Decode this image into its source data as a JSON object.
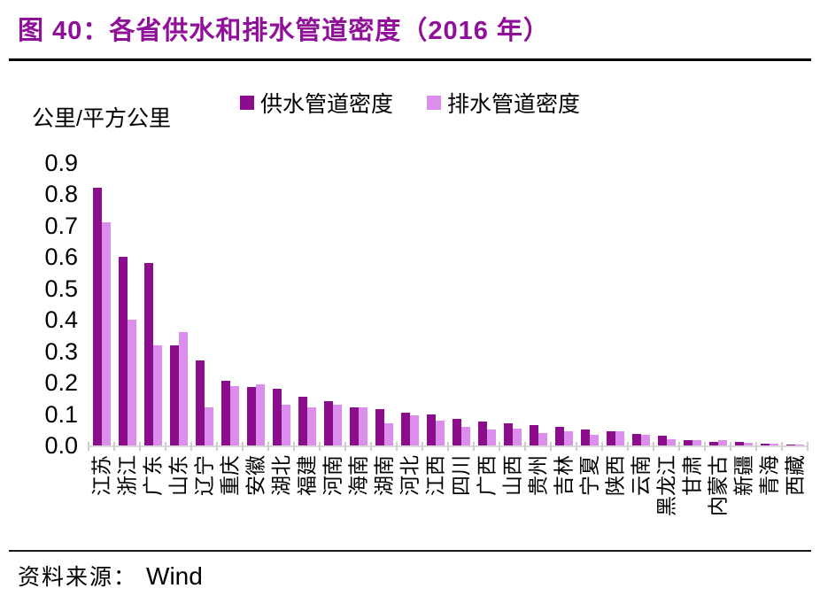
{
  "figure": {
    "title": "图 40：各省供水和排水管道密度（2016 年）",
    "title_color": "#90109A",
    "source_label": "资料来源：",
    "source_value": "Wind"
  },
  "chart_data": {
    "type": "bar",
    "title": "各省供水和排水管道密度（2016 年）",
    "unit_label": "公里/平方公里",
    "xlabel": "",
    "ylabel": "公里/平方公里",
    "ylim": [
      0,
      0.9
    ],
    "grid": false,
    "legend_position": "top-center",
    "axis_line_color": "#D9D9D9",
    "y_ticks": [
      "0.9",
      "0.8",
      "0.7",
      "0.6",
      "0.5",
      "0.4",
      "0.3",
      "0.2",
      "0.1",
      "0.0"
    ],
    "legend": [
      {
        "name": "供水管道密度",
        "color": "#8B0D8B"
      },
      {
        "name": "排水管道密度",
        "color": "#DB8EEC"
      }
    ],
    "categories": [
      "江苏",
      "浙江",
      "广东",
      "山东",
      "辽宁",
      "重庆",
      "安徽",
      "湖北",
      "福建",
      "河南",
      "海南",
      "湖南",
      "河北",
      "江西",
      "四川",
      "广西",
      "山西",
      "贵州",
      "吉林",
      "宁夏",
      "陕西",
      "云南",
      "黑龙江",
      "甘肃",
      "内蒙古",
      "新疆",
      "青海",
      "西藏"
    ],
    "series": [
      {
        "name": "供水管道密度",
        "values": [
          0.82,
          0.6,
          0.58,
          0.32,
          0.27,
          0.205,
          0.185,
          0.18,
          0.155,
          0.14,
          0.12,
          0.115,
          0.105,
          0.1,
          0.085,
          0.075,
          0.07,
          0.065,
          0.06,
          0.05,
          0.046,
          0.038,
          0.032,
          0.017,
          0.012,
          0.01,
          0.007,
          0.003
        ]
      },
      {
        "name": "排水管道密度",
        "values": [
          0.71,
          0.4,
          0.32,
          0.36,
          0.12,
          0.19,
          0.195,
          0.13,
          0.12,
          0.13,
          0.12,
          0.07,
          0.095,
          0.08,
          0.06,
          0.05,
          0.055,
          0.04,
          0.045,
          0.033,
          0.044,
          0.033,
          0.02,
          0.017,
          0.016,
          0.008,
          0.005,
          0.002
        ]
      }
    ]
  }
}
